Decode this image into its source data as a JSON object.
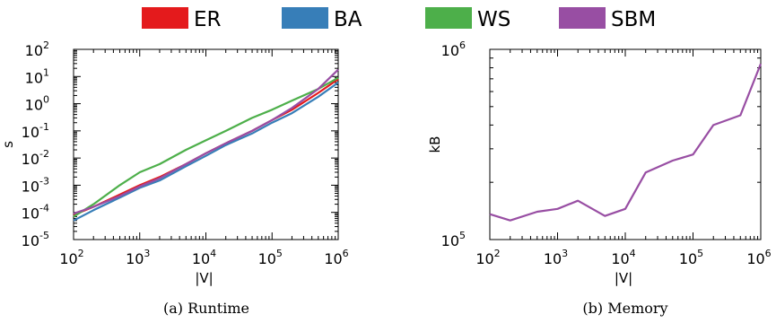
{
  "legend": [
    {
      "label": "ER",
      "color": "#e41a1c"
    },
    {
      "label": "BA",
      "color": "#377eb8"
    },
    {
      "label": "WS",
      "color": "#4daf4a"
    },
    {
      "label": "SBM",
      "color": "#984ea3"
    }
  ],
  "chart_data": [
    {
      "type": "line",
      "caption": "(a) Runtime",
      "xlabel": "|V|",
      "ylabel": "s",
      "xscale": "log",
      "yscale": "log",
      "xlim": [
        100,
        1000000
      ],
      "ylim": [
        1e-05,
        100
      ],
      "xticks": [
        {
          "v": 100,
          "base": "10",
          "exp": "2"
        },
        {
          "v": 1000,
          "base": "10",
          "exp": "3"
        },
        {
          "v": 10000,
          "base": "10",
          "exp": "4"
        },
        {
          "v": 100000,
          "base": "10",
          "exp": "5"
        },
        {
          "v": 1000000,
          "base": "10",
          "exp": "6"
        }
      ],
      "yticks": [
        {
          "v": 1e-05,
          "base": "10",
          "exp": "-5"
        },
        {
          "v": 0.0001,
          "base": "10",
          "exp": "-4"
        },
        {
          "v": 0.001,
          "base": "10",
          "exp": "-3"
        },
        {
          "v": 0.01,
          "base": "10",
          "exp": "-2"
        },
        {
          "v": 0.1,
          "base": "10",
          "exp": "-1"
        },
        {
          "v": 1,
          "base": "10",
          "exp": "0"
        },
        {
          "v": 10,
          "base": "10",
          "exp": "1"
        },
        {
          "v": 100,
          "base": "10",
          "exp": "2"
        }
      ],
      "grid": false,
      "legend": "top",
      "series": [
        {
          "name": "ER",
          "color": "#e41a1c",
          "x": [
            100,
            200,
            500,
            1000,
            2000,
            5000,
            10000,
            20000,
            50000,
            100000,
            200000,
            500000,
            1000000
          ],
          "y": [
            8e-05,
            0.00016,
            0.00045,
            0.001,
            0.002,
            0.006,
            0.015,
            0.035,
            0.1,
            0.25,
            0.6,
            2.5,
            8
          ]
        },
        {
          "name": "BA",
          "color": "#377eb8",
          "x": [
            100,
            200,
            500,
            1000,
            2000,
            5000,
            10000,
            20000,
            50000,
            100000,
            200000,
            500000,
            1000000
          ],
          "y": [
            5e-05,
            0.00012,
            0.00035,
            0.0008,
            0.0015,
            0.005,
            0.012,
            0.03,
            0.08,
            0.2,
            0.45,
            1.8,
            6
          ]
        },
        {
          "name": "WS",
          "color": "#4daf4a",
          "x": [
            100,
            200,
            500,
            1000,
            2000,
            5000,
            10000,
            20000,
            50000,
            100000,
            200000,
            500000,
            1000000
          ],
          "y": [
            7e-05,
            0.0002,
            0.001,
            0.003,
            0.006,
            0.02,
            0.045,
            0.1,
            0.3,
            0.6,
            1.3,
            3.5,
            9
          ]
        },
        {
          "name": "SBM",
          "color": "#984ea3",
          "x": [
            100,
            200,
            500,
            1000,
            2000,
            5000,
            10000,
            20000,
            50000,
            100000,
            200000,
            500000,
            1000000
          ],
          "y": [
            9e-05,
            0.00016,
            0.0004,
            0.0009,
            0.0018,
            0.006,
            0.015,
            0.035,
            0.1,
            0.25,
            0.7,
            3.5,
            18
          ]
        }
      ]
    },
    {
      "type": "line",
      "caption": "(b) Memory",
      "xlabel": "|V|",
      "ylabel": "kB",
      "xscale": "log",
      "yscale": "log",
      "xlim": [
        100,
        1000000
      ],
      "ylim": [
        100000,
        1000000
      ],
      "xticks": [
        {
          "v": 100,
          "base": "10",
          "exp": "2"
        },
        {
          "v": 1000,
          "base": "10",
          "exp": "3"
        },
        {
          "v": 10000,
          "base": "10",
          "exp": "4"
        },
        {
          "v": 100000,
          "base": "10",
          "exp": "5"
        },
        {
          "v": 1000000,
          "base": "10",
          "exp": "6"
        }
      ],
      "yticks": [
        {
          "v": 100000,
          "base": "10",
          "exp": "5"
        },
        {
          "v": 1000000,
          "base": "10",
          "exp": "6"
        }
      ],
      "grid": false,
      "series": [
        {
          "name": "SBM",
          "color": "#984ea3",
          "x": [
            100,
            200,
            500,
            1000,
            2000,
            5000,
            10000,
            20000,
            50000,
            100000,
            200000,
            500000,
            1000000
          ],
          "y": [
            136000,
            126000,
            140000,
            145000,
            160000,
            133000,
            145000,
            225000,
            260000,
            280000,
            400000,
            450000,
            840000
          ]
        }
      ]
    }
  ]
}
